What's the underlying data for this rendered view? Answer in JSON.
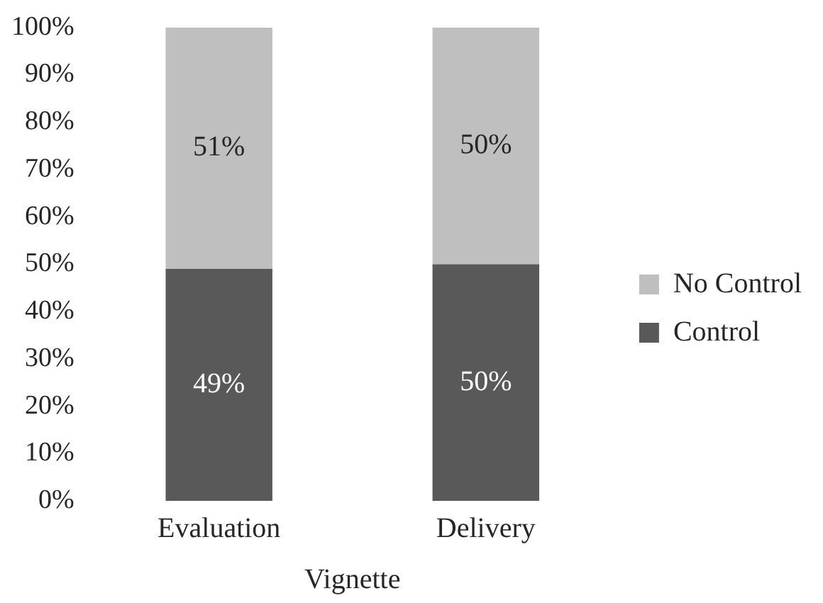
{
  "chart_data": {
    "type": "bar",
    "stacked": true,
    "xlabel": "Vignette",
    "categories": [
      "Evaluation",
      "Delivery"
    ],
    "series": [
      {
        "name": "Control",
        "color": "#595959",
        "values": [
          49,
          50
        ],
        "value_labels": [
          "49%",
          "50%"
        ]
      },
      {
        "name": "No Control",
        "color": "#bfbfbf",
        "values": [
          51,
          50
        ],
        "value_labels": [
          "51%",
          "50%"
        ]
      }
    ],
    "ylim": [
      0,
      100
    ],
    "yticks": [
      {
        "value": 0,
        "label": "0%"
      },
      {
        "value": 10,
        "label": "10%"
      },
      {
        "value": 20,
        "label": "20%"
      },
      {
        "value": 30,
        "label": "30%"
      },
      {
        "value": 40,
        "label": "40%"
      },
      {
        "value": 50,
        "label": "50%"
      },
      {
        "value": 60,
        "label": "60%"
      },
      {
        "value": 70,
        "label": "70%"
      },
      {
        "value": 80,
        "label": "80%"
      },
      {
        "value": 90,
        "label": "90%"
      },
      {
        "value": 100,
        "label": "100%"
      }
    ],
    "grid": false,
    "legend": "right"
  }
}
